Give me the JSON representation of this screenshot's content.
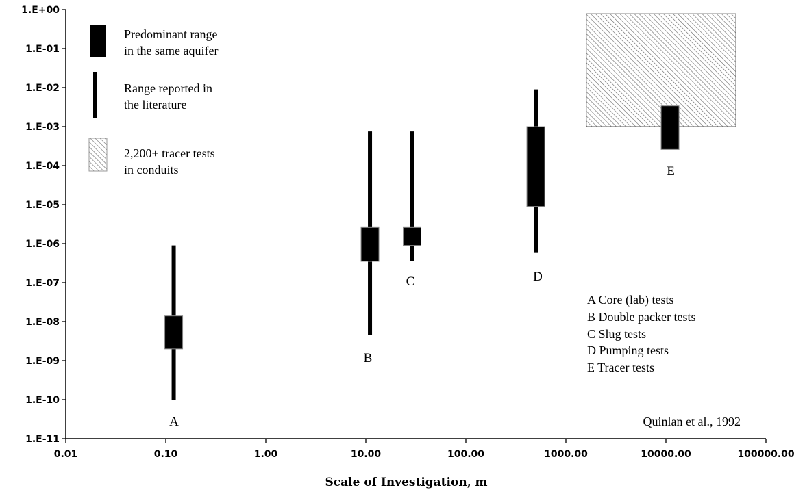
{
  "chart_data": {
    "type": "range",
    "xlabel": "Scale of Investigation, m",
    "ylabel": "",
    "x_scale": "log",
    "y_scale": "log",
    "xlim": [
      0.01,
      100000
    ],
    "ylim": [
      1e-11,
      1
    ],
    "grid": false,
    "x_ticks": [
      "0.01",
      "0.10",
      "1.00",
      "10.00",
      "100.00",
      "1000.00",
      "10000.00",
      "100000.00"
    ],
    "y_ticks": [
      "1.E+00",
      "1.E-01",
      "1.E-02",
      "1.E-03",
      "1.E-04",
      "1.E-05",
      "1.E-06",
      "1.E-07",
      "1.E-08",
      "1.E-09",
      "1.E-10",
      "1.E-11"
    ],
    "series": [
      {
        "label": "A",
        "x": 0.12,
        "reported_range": [
          1e-10,
          9e-07
        ],
        "predominant_range": [
          2e-09,
          1.4e-08
        ]
      },
      {
        "label": "B",
        "x": 11,
        "reported_range": [
          4.5e-09,
          0.00075
        ],
        "predominant_range": [
          3.5e-07,
          2.6e-06
        ]
      },
      {
        "label": "C",
        "x": 29,
        "reported_range": [
          3.5e-07,
          0.00075
        ],
        "predominant_range": [
          9e-07,
          2.6e-06
        ]
      },
      {
        "label": "D",
        "x": 500,
        "reported_range": [
          6e-07,
          0.009
        ],
        "predominant_range": [
          9e-06,
          0.001
        ]
      },
      {
        "label": "E",
        "x": 11000,
        "predominant_range": [
          0.00026,
          0.0034
        ]
      }
    ],
    "tracer_box": {
      "x_range": [
        1600,
        50000
      ],
      "y_range": [
        0.001,
        0.78
      ]
    },
    "legend": [
      {
        "symbol": "thick",
        "line1": "Predominant range",
        "line2": "in the same aquifer"
      },
      {
        "symbol": "thin",
        "line1": "Range reported in",
        "line2": "the literature"
      },
      {
        "symbol": "hatched",
        "line1": "2,200+ tracer tests",
        "line2": "in conduits"
      }
    ],
    "key": [
      "A Core (lab) tests",
      "B Double packer tests",
      "C Slug tests",
      "D Pumping tests",
      "E Tracer tests"
    ],
    "source_note": "Quinlan et al., 1992"
  }
}
